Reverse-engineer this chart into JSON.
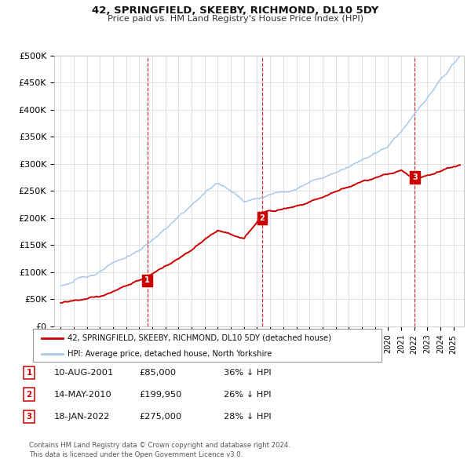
{
  "title": "42, SPRINGFIELD, SKEEBY, RICHMOND, DL10 5DY",
  "subtitle": "Price paid vs. HM Land Registry's House Price Index (HPI)",
  "ylabel_ticks": [
    "£0",
    "£50K",
    "£100K",
    "£150K",
    "£200K",
    "£250K",
    "£300K",
    "£350K",
    "£400K",
    "£450K",
    "£500K"
  ],
  "ylim": [
    0,
    500000
  ],
  "xlim_start": 1994.5,
  "xlim_end": 2025.8,
  "hpi_color": "#aac8e8",
  "price_color": "#cc0000",
  "sale_markers": [
    {
      "year": 2001.61,
      "price": 85000,
      "label": "1"
    },
    {
      "year": 2010.37,
      "price": 199950,
      "label": "2"
    },
    {
      "year": 2022.05,
      "price": 275000,
      "label": "3"
    }
  ],
  "legend_line1": "42, SPRINGFIELD, SKEEBY, RICHMOND, DL10 5DY (detached house)",
  "legend_line2": "HPI: Average price, detached house, North Yorkshire",
  "table_rows": [
    {
      "num": "1",
      "date": "10-AUG-2001",
      "price": "£85,000",
      "hpi": "36% ↓ HPI"
    },
    {
      "num": "2",
      "date": "14-MAY-2010",
      "price": "£199,950",
      "hpi": "26% ↓ HPI"
    },
    {
      "num": "3",
      "date": "18-JAN-2022",
      "price": "£275,000",
      "hpi": "28% ↓ HPI"
    }
  ],
  "footer1": "Contains HM Land Registry data © Crown copyright and database right 2024.",
  "footer2": "This data is licensed under the Open Government Licence v3.0.",
  "background_color": "#ffffff",
  "grid_color": "#dddddd"
}
